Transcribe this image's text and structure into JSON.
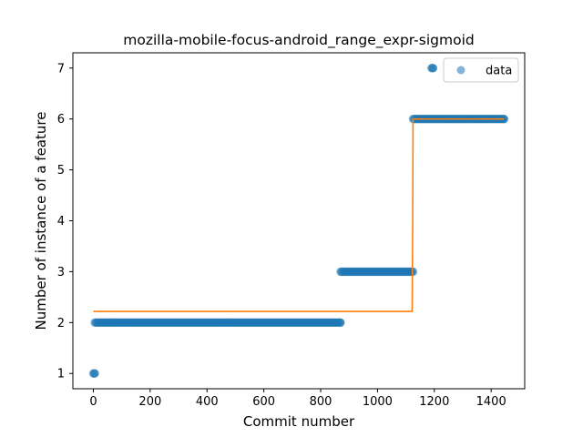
{
  "chart_data": {
    "type": "scatter",
    "title": "mozilla-mobile-focus-android_range_expr-sigmoid",
    "xlabel": "Commit number",
    "ylabel": "Number of instance of a feature",
    "xlim": [
      -72,
      1518
    ],
    "ylim": [
      0.7,
      7.3
    ],
    "xticks": [
      0,
      200,
      400,
      600,
      800,
      1000,
      1200,
      1400
    ],
    "yticks": [
      1,
      2,
      3,
      4,
      5,
      6,
      7
    ],
    "grid": false,
    "legend": {
      "position": "top-right",
      "entries": [
        "data"
      ]
    },
    "colors": {
      "data": "#1f77b4",
      "fit": "#ff7f0e"
    },
    "series": [
      {
        "name": "data",
        "kind": "scatter",
        "segments": [
          {
            "x_start": 0,
            "x_end": 5,
            "y": 1
          },
          {
            "x_start": 5,
            "x_end": 870,
            "y": 2
          },
          {
            "x_start": 870,
            "x_end": 1125,
            "y": 3
          },
          {
            "x_start": 1125,
            "x_end": 1445,
            "y": 6
          },
          {
            "x_start": 1190,
            "x_end": 1196,
            "y": 7
          }
        ]
      },
      {
        "kind": "line",
        "x": [
          0,
          1122,
          1124,
          1125,
          1445
        ],
        "y": [
          2.22,
          2.22,
          4.1,
          6.0,
          6.0
        ]
      }
    ]
  }
}
